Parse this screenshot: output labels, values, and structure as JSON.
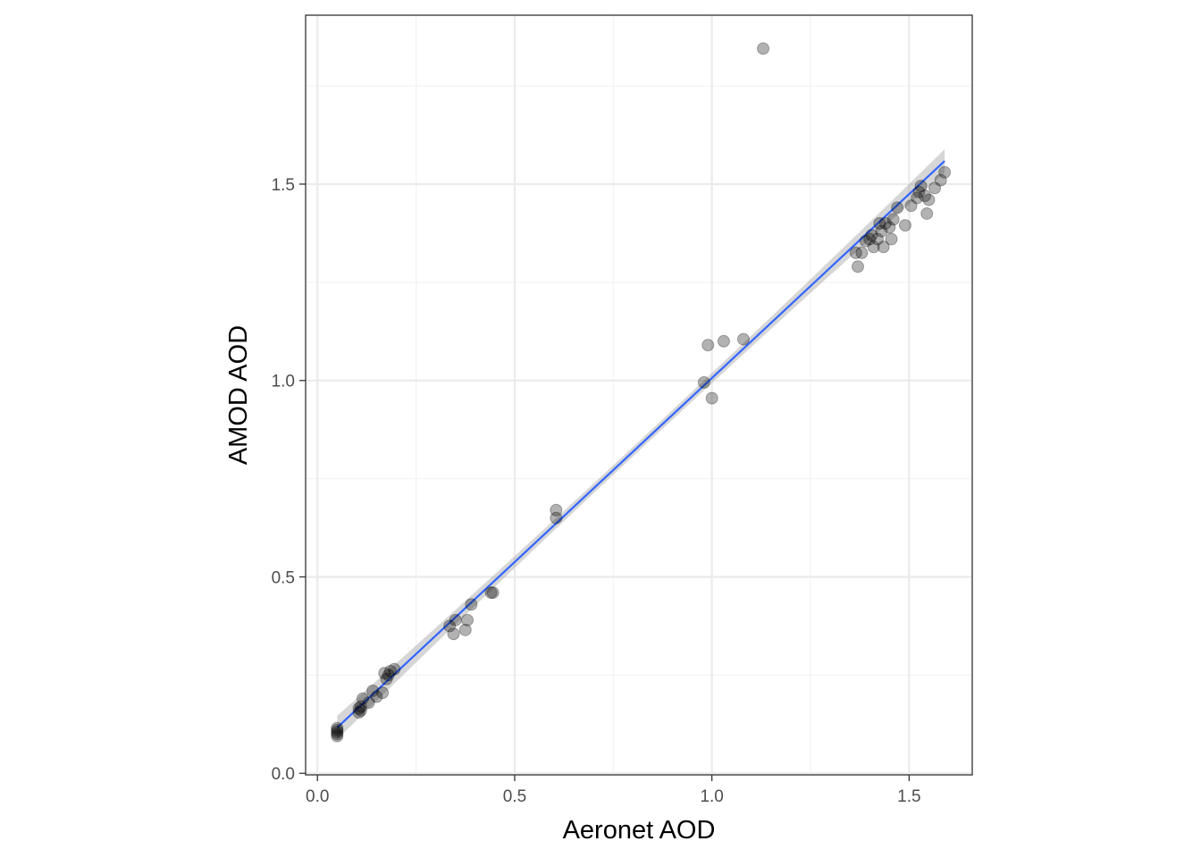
{
  "chart_data": {
    "type": "scatter",
    "title": "",
    "xlabel": "Aeronet AOD",
    "ylabel": "AMOD AOD",
    "xlim": [
      -0.03,
      1.66
    ],
    "ylim": [
      -0.004,
      1.93
    ],
    "x_ticks": [
      {
        "value": 0.0,
        "label": "0.0"
      },
      {
        "value": 0.5,
        "label": "0.5"
      },
      {
        "value": 1.0,
        "label": "1.0"
      },
      {
        "value": 1.5,
        "label": "1.5"
      }
    ],
    "y_ticks": [
      {
        "value": 0.0,
        "label": "0.0"
      },
      {
        "value": 0.5,
        "label": "0.5"
      },
      {
        "value": 1.0,
        "label": "1.0"
      },
      {
        "value": 1.5,
        "label": "1.5"
      }
    ],
    "minor_x": [
      0.25,
      0.75,
      1.25
    ],
    "minor_y": [
      0.25,
      0.75,
      1.25,
      1.75
    ],
    "grid": true,
    "points": [
      {
        "x": 0.05,
        "y": 0.115
      },
      {
        "x": 0.05,
        "y": 0.1
      },
      {
        "x": 0.05,
        "y": 0.105
      },
      {
        "x": 0.05,
        "y": 0.095
      },
      {
        "x": 0.05,
        "y": 0.11
      },
      {
        "x": 0.105,
        "y": 0.165
      },
      {
        "x": 0.105,
        "y": 0.155
      },
      {
        "x": 0.11,
        "y": 0.17
      },
      {
        "x": 0.11,
        "y": 0.16
      },
      {
        "x": 0.115,
        "y": 0.19
      },
      {
        "x": 0.13,
        "y": 0.18
      },
      {
        "x": 0.14,
        "y": 0.21
      },
      {
        "x": 0.15,
        "y": 0.195
      },
      {
        "x": 0.165,
        "y": 0.205
      },
      {
        "x": 0.17,
        "y": 0.255
      },
      {
        "x": 0.175,
        "y": 0.24
      },
      {
        "x": 0.18,
        "y": 0.25
      },
      {
        "x": 0.185,
        "y": 0.26
      },
      {
        "x": 0.195,
        "y": 0.265
      },
      {
        "x": 0.335,
        "y": 0.375
      },
      {
        "x": 0.345,
        "y": 0.355
      },
      {
        "x": 0.35,
        "y": 0.39
      },
      {
        "x": 0.375,
        "y": 0.365
      },
      {
        "x": 0.38,
        "y": 0.39
      },
      {
        "x": 0.39,
        "y": 0.43
      },
      {
        "x": 0.44,
        "y": 0.46
      },
      {
        "x": 0.445,
        "y": 0.46
      },
      {
        "x": 0.605,
        "y": 0.67
      },
      {
        "x": 0.605,
        "y": 0.65
      },
      {
        "x": 0.98,
        "y": 0.995
      },
      {
        "x": 0.99,
        "y": 1.09
      },
      {
        "x": 1.0,
        "y": 0.955
      },
      {
        "x": 1.03,
        "y": 1.1
      },
      {
        "x": 1.08,
        "y": 1.105
      },
      {
        "x": 1.13,
        "y": 1.845
      },
      {
        "x": 1.365,
        "y": 1.325
      },
      {
        "x": 1.37,
        "y": 1.29
      },
      {
        "x": 1.38,
        "y": 1.325
      },
      {
        "x": 1.39,
        "y": 1.355
      },
      {
        "x": 1.4,
        "y": 1.36
      },
      {
        "x": 1.405,
        "y": 1.37
      },
      {
        "x": 1.41,
        "y": 1.34
      },
      {
        "x": 1.42,
        "y": 1.36
      },
      {
        "x": 1.425,
        "y": 1.4
      },
      {
        "x": 1.43,
        "y": 1.38
      },
      {
        "x": 1.435,
        "y": 1.34
      },
      {
        "x": 1.44,
        "y": 1.4
      },
      {
        "x": 1.45,
        "y": 1.39
      },
      {
        "x": 1.455,
        "y": 1.36
      },
      {
        "x": 1.46,
        "y": 1.41
      },
      {
        "x": 1.47,
        "y": 1.44
      },
      {
        "x": 1.49,
        "y": 1.395
      },
      {
        "x": 1.505,
        "y": 1.445
      },
      {
        "x": 1.52,
        "y": 1.465
      },
      {
        "x": 1.525,
        "y": 1.48
      },
      {
        "x": 1.53,
        "y": 1.495
      },
      {
        "x": 1.54,
        "y": 1.47
      },
      {
        "x": 1.545,
        "y": 1.425
      },
      {
        "x": 1.55,
        "y": 1.46
      },
      {
        "x": 1.565,
        "y": 1.49
      },
      {
        "x": 1.58,
        "y": 1.51
      },
      {
        "x": 1.59,
        "y": 1.53
      }
    ],
    "fit_line": {
      "type": "linear",
      "x_range": [
        0.05,
        1.59
      ],
      "slope": 0.9366,
      "intercept": 0.0696,
      "ci_halfwidth_ends": 0.03,
      "ci_halfwidth_mid": 0.012
    },
    "colors": {
      "point_fill": "#000000",
      "point_opacity": 0.3,
      "line": "#3366ff",
      "ribbon": "#999999",
      "grid_major": "#ebebeb",
      "grid_minor": "#f3f3f3",
      "border": "#333333",
      "text": "#4d4d4d"
    }
  }
}
